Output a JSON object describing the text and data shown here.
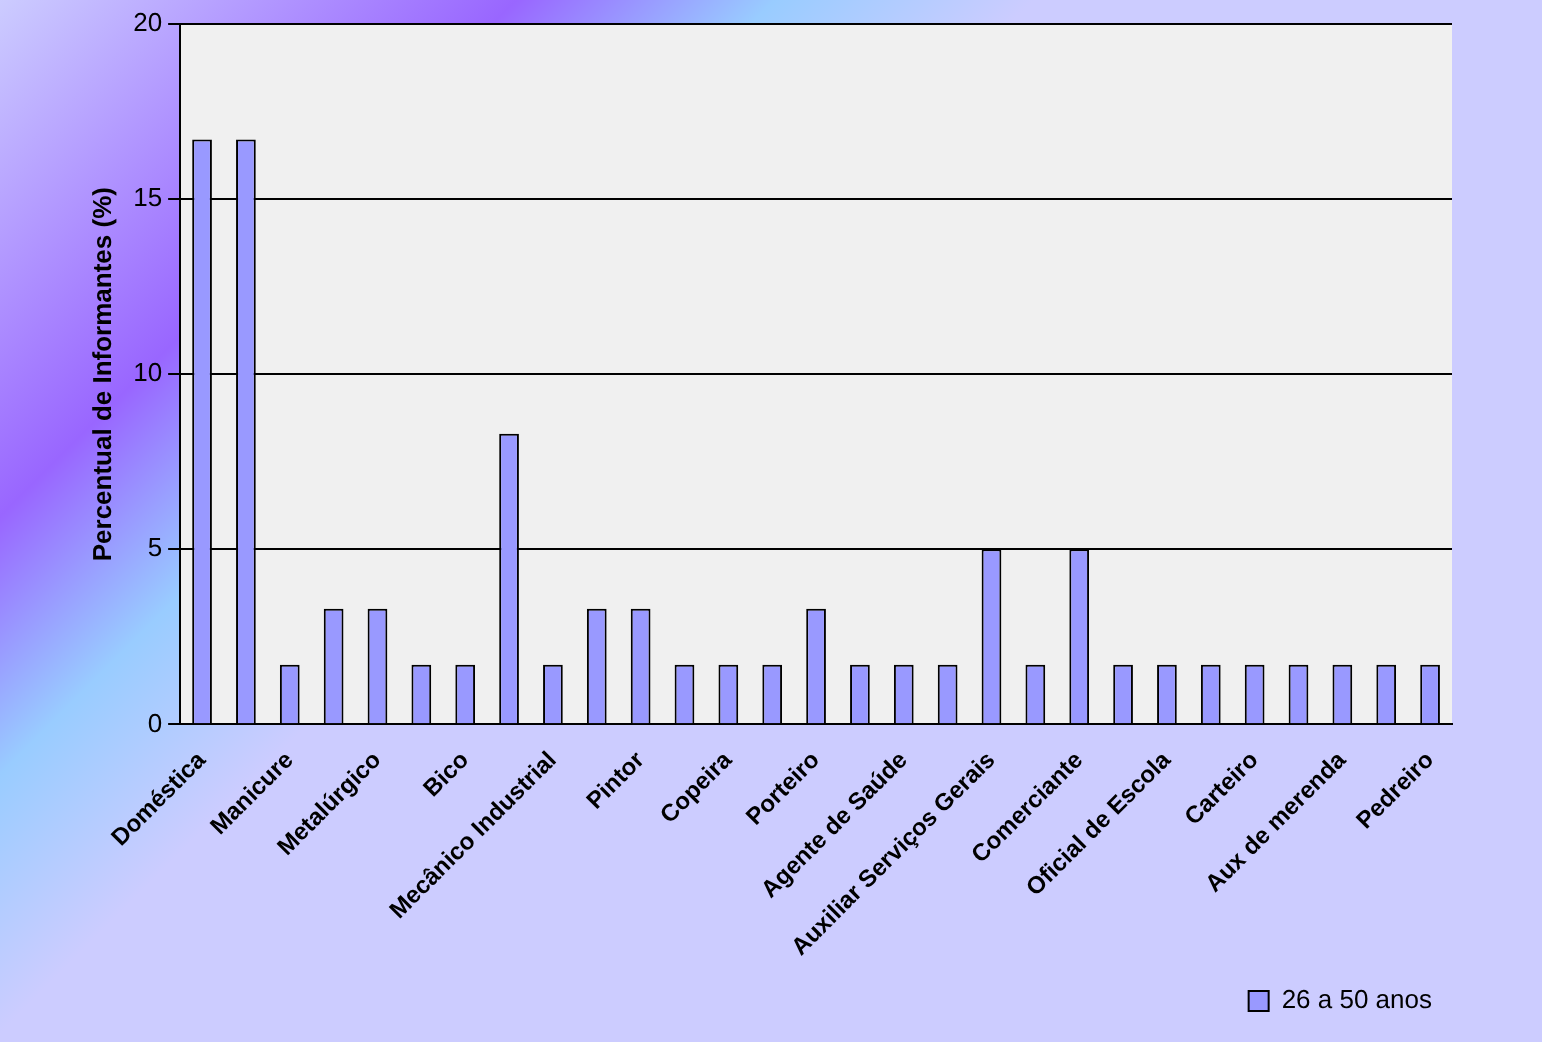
{
  "chart_data": {
    "type": "bar",
    "ylabel": "Percentual de Informantes (%)",
    "categories": [
      "Doméstica",
      null,
      "Manicure",
      null,
      "Metalúrgico",
      null,
      "Bico",
      null,
      "Mecânico Industrial",
      null,
      "Pintor",
      null,
      "Copeira",
      null,
      "Porteiro",
      null,
      "Agente de Saúde",
      null,
      "Auxiliar Serviços Gerais",
      null,
      "Comerciante",
      null,
      "Oficial de Escola",
      null,
      "Carteiro",
      null,
      "Aux de merenda",
      null,
      "Pedreiro"
    ],
    "series": [
      {
        "name": "26 a 50 anos",
        "color": "#9999ff",
        "values": [
          16.7,
          16.7,
          1.7,
          3.3,
          3.3,
          1.7,
          1.7,
          8.3,
          1.7,
          3.3,
          3.3,
          1.7,
          1.7,
          1.7,
          3.3,
          1.7,
          1.7,
          1.7,
          5,
          1.7,
          5,
          1.7,
          1.7,
          1.7,
          1.7,
          1.7,
          1.7,
          1.7,
          1.7
        ]
      }
    ],
    "ylim": [
      0,
      20
    ],
    "yticks": [
      0,
      5,
      10,
      15,
      20
    ],
    "grid": "y",
    "legend": "bottom right"
  }
}
